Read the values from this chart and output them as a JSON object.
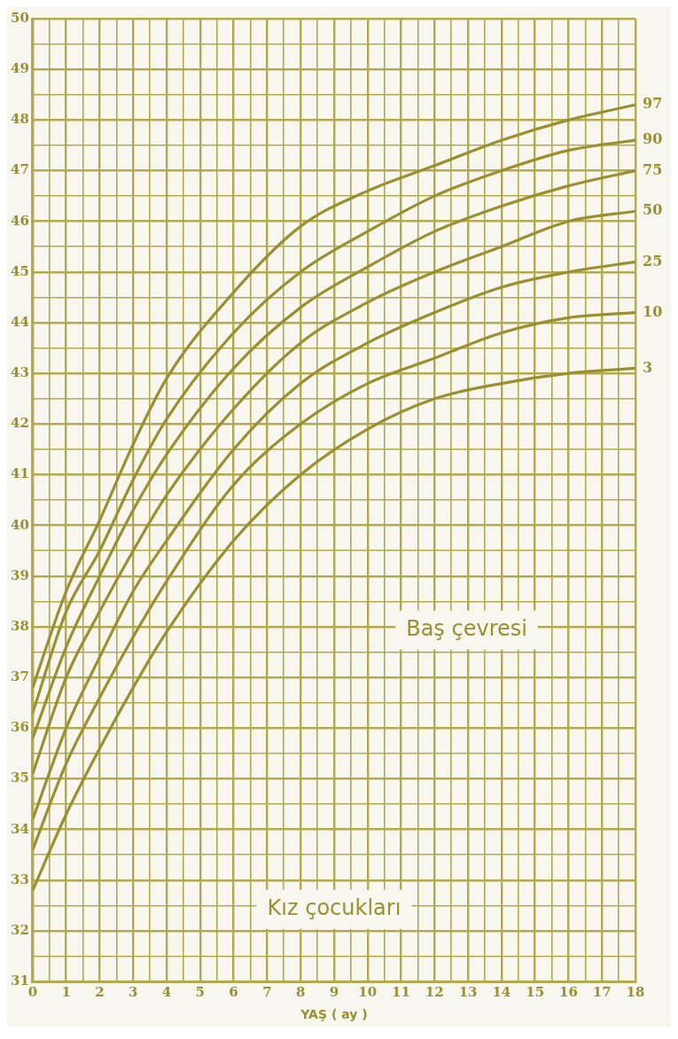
{
  "chart_data": {
    "type": "line",
    "xlabel": "YAŞ ( ay )",
    "x": [
      0,
      1,
      2,
      3,
      4,
      6,
      8,
      10,
      12,
      14,
      16,
      18
    ],
    "series": [
      {
        "name": "97",
        "color": "#9a9032",
        "values": [
          36.8,
          38.7,
          40.1,
          41.6,
          42.9,
          44.6,
          45.9,
          46.6,
          47.1,
          47.6,
          48.0,
          48.3
        ]
      },
      {
        "name": "90",
        "color": "#9a9032",
        "values": [
          36.3,
          38.3,
          39.5,
          40.9,
          42.1,
          43.8,
          45.0,
          45.8,
          46.5,
          47.0,
          47.4,
          47.6
        ]
      },
      {
        "name": "75",
        "color": "#9a9032",
        "values": [
          35.8,
          37.6,
          39.0,
          40.3,
          41.4,
          43.1,
          44.3,
          45.1,
          45.8,
          46.3,
          46.7,
          47.0
        ]
      },
      {
        "name": "50",
        "color": "#9a9032",
        "values": [
          35.1,
          37.0,
          38.3,
          39.5,
          40.6,
          42.3,
          43.6,
          44.4,
          45.0,
          45.5,
          46.0,
          46.2
        ]
      },
      {
        "name": "25",
        "color": "#9a9032",
        "values": [
          34.2,
          36.0,
          37.4,
          38.7,
          39.7,
          41.5,
          42.8,
          43.6,
          44.2,
          44.7,
          45.0,
          45.2
        ]
      },
      {
        "name": "10",
        "color": "#9a9032",
        "values": [
          33.6,
          35.3,
          36.6,
          37.8,
          38.9,
          40.8,
          42.0,
          42.8,
          43.3,
          43.8,
          44.1,
          44.2
        ]
      },
      {
        "name": "3",
        "color": "#9a9032",
        "values": [
          32.8,
          34.3,
          35.6,
          36.8,
          37.9,
          39.7,
          41.0,
          41.9,
          42.5,
          42.8,
          43.0,
          43.1
        ]
      }
    ],
    "xlim": [
      0,
      18
    ],
    "ylim": [
      31,
      50
    ],
    "xticks": [
      0,
      {
        "value": 0.5,
        "label": null
      },
      1,
      {
        "value": 1.5,
        "label": null
      },
      2,
      {
        "value": 2.5,
        "label": null
      },
      3,
      {
        "value": 3.5,
        "label": null
      },
      4,
      {
        "value": 4.5,
        "label": null
      },
      5,
      {
        "value": 5.5,
        "label": null
      },
      6,
      {
        "value": 6.5,
        "label": null
      },
      7,
      {
        "value": 7.5,
        "label": null
      },
      8,
      {
        "value": 8.5,
        "label": null
      },
      9,
      {
        "value": 9.5,
        "label": null
      },
      10,
      {
        "value": 10.5,
        "label": null
      },
      11,
      {
        "value": 11.5,
        "label": null
      },
      12,
      {
        "value": 12.5,
        "label": null
      },
      13,
      {
        "value": 13.5,
        "label": null
      },
      14,
      {
        "value": 14.5,
        "label": null
      },
      15,
      {
        "value": 15.5,
        "label": null
      },
      16,
      {
        "value": 16.5,
        "label": null
      },
      17,
      {
        "value": 17.5,
        "label": null
      },
      18
    ],
    "yticks": [
      31,
      {
        "value": 31.5,
        "label": null
      },
      32,
      {
        "value": 32.5,
        "label": null
      },
      33,
      {
        "value": 33.5,
        "label": null
      },
      34,
      {
        "value": 34.5,
        "label": null
      },
      35,
      {
        "value": 35.5,
        "label": null
      },
      36,
      {
        "value": 36.5,
        "label": null
      },
      37,
      {
        "value": 37.5,
        "label": null
      },
      38,
      {
        "value": 38.5,
        "label": null
      },
      39,
      {
        "value": 39.5,
        "label": null
      },
      40,
      {
        "value": 40.5,
        "label": null
      },
      41,
      {
        "value": 41.5,
        "label": null
      },
      42,
      {
        "value": 42.5,
        "label": null
      },
      43,
      {
        "value": 43.5,
        "label": null
      },
      44,
      {
        "value": 44.5,
        "label": null
      },
      45,
      {
        "value": 45.5,
        "label": null
      },
      46,
      {
        "value": 46.5,
        "label": null
      },
      47,
      {
        "value": 47.5,
        "label": null
      },
      48,
      {
        "value": 48.5,
        "label": null
      },
      49,
      {
        "value": 49.5,
        "label": null
      },
      50
    ],
    "grid": true,
    "legend": false,
    "marker": "none",
    "line_style": "solid",
    "annotations": [
      "Baş çevresi",
      "Kız çocukları"
    ]
  }
}
